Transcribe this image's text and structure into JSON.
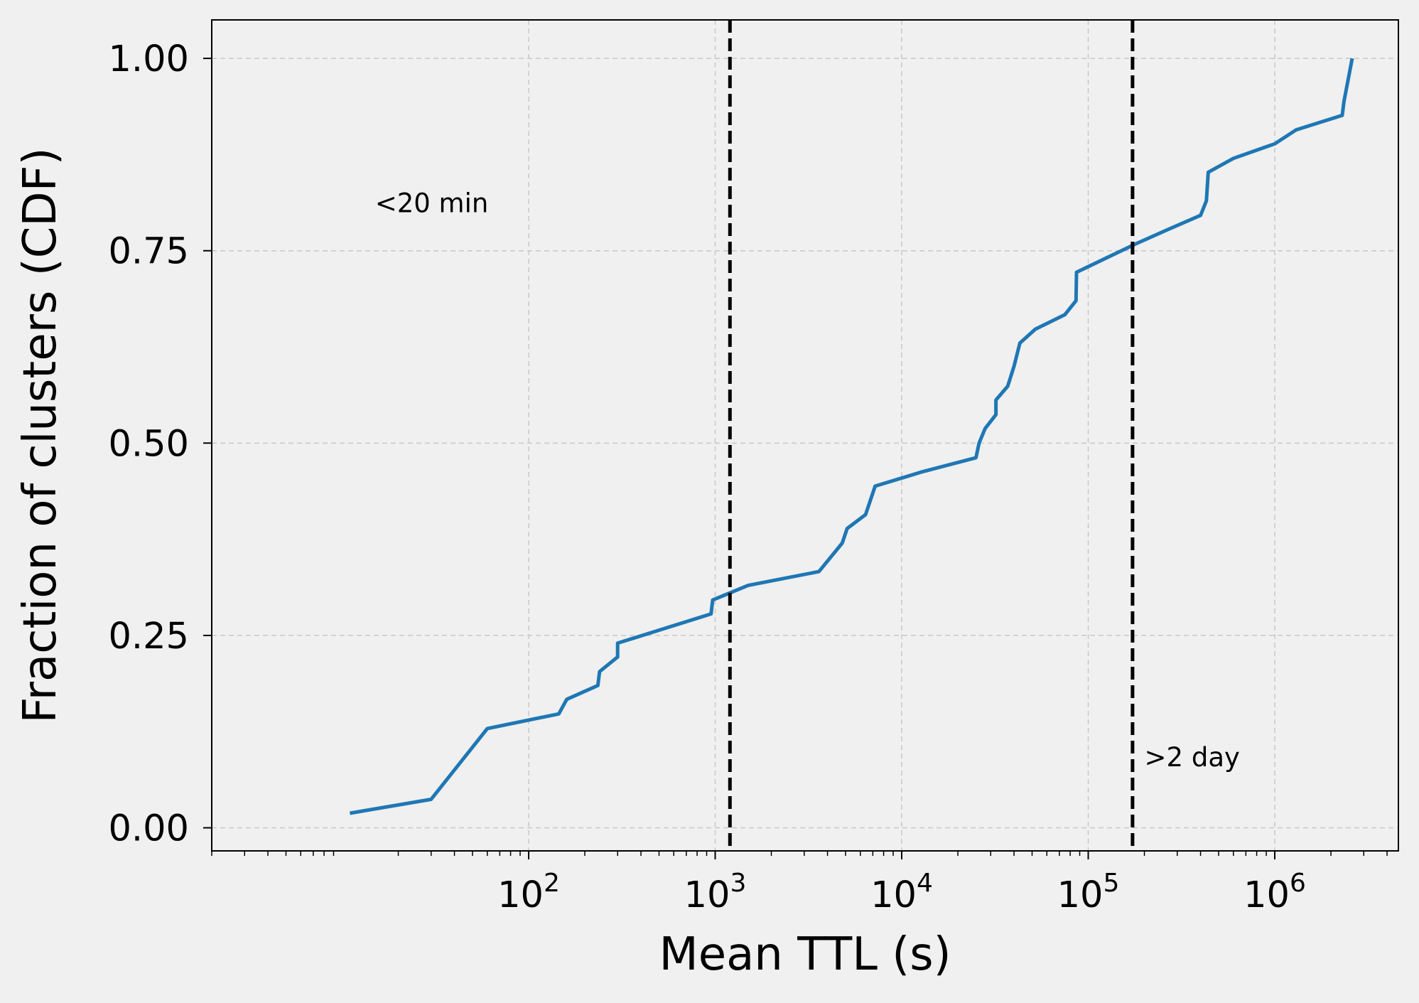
{
  "chart_data": {
    "type": "line",
    "xlabel": "Mean TTL (s)",
    "ylabel": "Fraction of clusters (CDF)",
    "xscale": "log",
    "xlim": [
      2.0,
      4600000
    ],
    "ylim": [
      -0.03,
      1.05
    ],
    "grid": true,
    "x_ticks": [
      {
        "value": 100,
        "base": "10",
        "exp": "2"
      },
      {
        "value": 1000,
        "base": "10",
        "exp": "3"
      },
      {
        "value": 10000,
        "base": "10",
        "exp": "4"
      },
      {
        "value": 100000,
        "base": "10",
        "exp": "5"
      },
      {
        "value": 1000000,
        "base": "10",
        "exp": "6"
      }
    ],
    "y_ticks": [
      {
        "value": 0.0,
        "label": "0.00"
      },
      {
        "value": 0.25,
        "label": "0.25"
      },
      {
        "value": 0.5,
        "label": "0.50"
      },
      {
        "value": 0.75,
        "label": "0.75"
      },
      {
        "value": 1.0,
        "label": "1.00"
      }
    ],
    "series": [
      {
        "color": "#1f77b4",
        "x": [
          11,
          30,
          60,
          145,
          160,
          235,
          240,
          300,
          300,
          950,
          970,
          1500,
          3600,
          4800,
          5100,
          6400,
          7200,
          13000,
          25000,
          26000,
          28000,
          32000,
          32000,
          37000,
          40000,
          43000,
          52000,
          75000,
          86000,
          86500,
          180000,
          270000,
          400000,
          430000,
          440000,
          600000,
          1000000,
          1300000,
          2300000,
          2350000,
          2600000
        ],
        "y": [
          0.019,
          0.037,
          0.129,
          0.148,
          0.167,
          0.185,
          0.203,
          0.222,
          0.24,
          0.278,
          0.296,
          0.315,
          0.333,
          0.37,
          0.389,
          0.407,
          0.444,
          0.463,
          0.481,
          0.5,
          0.519,
          0.537,
          0.556,
          0.574,
          0.6,
          0.63,
          0.648,
          0.667,
          0.685,
          0.722,
          0.759,
          0.778,
          0.796,
          0.815,
          0.852,
          0.87,
          0.889,
          0.907,
          0.926,
          0.944,
          1.0
        ]
      }
    ],
    "vlines": [
      {
        "x": 1200,
        "style": "dashed",
        "color": "#000000"
      },
      {
        "x": 172800,
        "style": "dashed",
        "color": "#000000"
      }
    ],
    "annotations": [
      {
        "text": "<20 min",
        "x": 15,
        "y": 0.8
      },
      {
        "text": ">2 day",
        "x": 200000,
        "y": 0.08
      }
    ]
  }
}
